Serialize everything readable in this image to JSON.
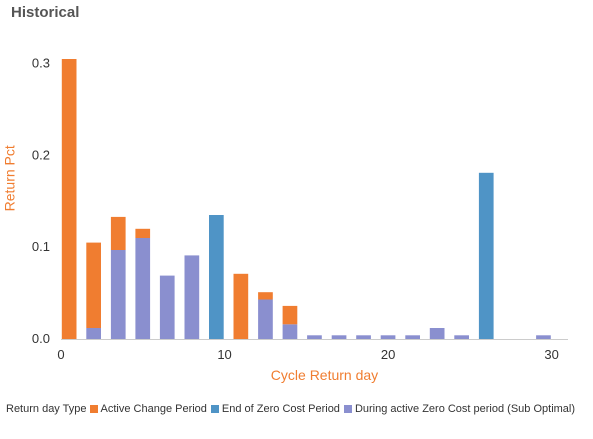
{
  "window": {
    "title": "Historical"
  },
  "colors": {
    "accent": "#f07d30",
    "tick_text": "#333333"
  },
  "chart_data": {
    "type": "bar",
    "stacked": true,
    "xlabel": "Cycle Return day",
    "ylabel": "Return Pct",
    "xlim": [
      0,
      31
    ],
    "ylim": [
      0,
      0.33
    ],
    "xticks": [
      0,
      10,
      20,
      30
    ],
    "xtick_labels": [
      "0",
      "10",
      "20",
      "30"
    ],
    "yticks": [
      0.0,
      0.1,
      0.2,
      0.3
    ],
    "ytick_labels": [
      "0.0",
      "0.1",
      "0.2",
      "0.3"
    ],
    "grid": false,
    "legend": {
      "title": "Return day Type",
      "placement": "bottom-left",
      "entries": [
        {
          "name": "Active Change Period",
          "color": "#f07d30"
        },
        {
          "name": "End of Zero Cost Period",
          "color": "#4f94c6"
        },
        {
          "name": "During active Zero Cost period (Sub Optimal)",
          "color": "#8a8fcf"
        }
      ]
    },
    "bar_width": 0.9,
    "series": [
      {
        "name": "During active Zero Cost period (Sub Optimal)",
        "color": "#8a8fcf",
        "points": [
          {
            "x": 2,
            "y": 0.012
          },
          {
            "x": 3.5,
            "y": 0.097
          },
          {
            "x": 5,
            "y": 0.11
          },
          {
            "x": 6.5,
            "y": 0.069
          },
          {
            "x": 8,
            "y": 0.091
          },
          {
            "x": 12.5,
            "y": 0.043
          },
          {
            "x": 14,
            "y": 0.016
          },
          {
            "x": 15.5,
            "y": 0.004
          },
          {
            "x": 17,
            "y": 0.004
          },
          {
            "x": 18.5,
            "y": 0.004
          },
          {
            "x": 20,
            "y": 0.004
          },
          {
            "x": 21.5,
            "y": 0.004
          },
          {
            "x": 23,
            "y": 0.012
          },
          {
            "x": 24.5,
            "y": 0.004
          },
          {
            "x": 29.5,
            "y": 0.004
          }
        ]
      },
      {
        "name": "Active Change Period",
        "color": "#f07d30",
        "points": [
          {
            "x": 0.5,
            "y": 0.305
          },
          {
            "x": 2,
            "y": 0.093
          },
          {
            "x": 3.5,
            "y": 0.036
          },
          {
            "x": 5,
            "y": 0.01
          },
          {
            "x": 11,
            "y": 0.071
          },
          {
            "x": 12.5,
            "y": 0.008
          },
          {
            "x": 14,
            "y": 0.02
          }
        ]
      },
      {
        "name": "End of Zero Cost Period",
        "color": "#4f94c6",
        "points": [
          {
            "x": 9.5,
            "y": 0.135
          },
          {
            "x": 26,
            "y": 0.181
          }
        ]
      }
    ]
  }
}
